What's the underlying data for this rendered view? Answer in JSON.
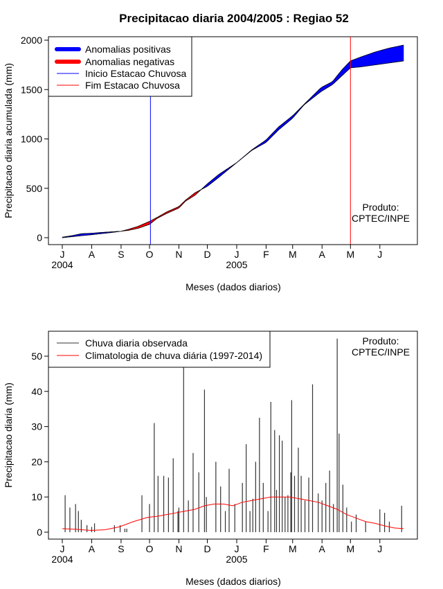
{
  "chart_data": [
    {
      "type": "area",
      "title": "Precipitacao diaria 2004/2005 : Regiao 52",
      "ylabel": "Precipitacao diaria acumulada (mm)",
      "xlabel": "Meses (dados diarios)",
      "ylim": [
        0,
        2000
      ],
      "yticks": [
        0,
        500,
        1000,
        1500,
        2000
      ],
      "month_ticks": [
        "J",
        "A",
        "S",
        "O",
        "N",
        "D",
        "J",
        "F",
        "M",
        "A",
        "M",
        "J"
      ],
      "year_labels": [
        {
          "label": "2004",
          "day": 0
        },
        {
          "label": "2005",
          "day": 184
        }
      ],
      "legend": {
        "position": "top-left",
        "items": [
          {
            "label": "Anomalias positivas",
            "color": "#0000ff"
          },
          {
            "label": "Anomalias negativas",
            "color": "#ff0000"
          },
          {
            "label": "Inicio Estacao Chuvosa",
            "color": "#0000ff"
          },
          {
            "label": "Fim Estacao Chuvosa",
            "color": "#ff0000"
          }
        ]
      },
      "rainy_season_start_day": 93,
      "rainy_season_end_day": 304,
      "product_label": [
        "Produto:",
        "CPTEC/INPE"
      ],
      "days": [
        0,
        10,
        20,
        31,
        40,
        50,
        62,
        70,
        80,
        92,
        100,
        110,
        123,
        130,
        140,
        153,
        165,
        184,
        200,
        215,
        228,
        243,
        255,
        273,
        285,
        295,
        304,
        315,
        330,
        345,
        360
      ],
      "observed_cumulative": [
        5,
        20,
        40,
        45,
        52,
        58,
        65,
        75,
        95,
        135,
        195,
        245,
        300,
        370,
        430,
        545,
        640,
        760,
        890,
        990,
        1120,
        1235,
        1350,
        1520,
        1580,
        1700,
        1790,
        1830,
        1880,
        1920,
        1950
      ],
      "climatology_cumulative": [
        0,
        10,
        20,
        30,
        40,
        50,
        65,
        85,
        115,
        165,
        205,
        260,
        315,
        380,
        455,
        520,
        610,
        760,
        885,
        965,
        1090,
        1210,
        1345,
        1480,
        1550,
        1640,
        1720,
        1730,
        1750,
        1770,
        1790
      ],
      "color_positive": "#0000ff",
      "color_negative": "#ff0000"
    },
    {
      "type": "bar",
      "ylabel": "Precipitacao diaria (mm)",
      "xlabel": "Meses (dados diarios)",
      "ylim": [
        0,
        57
      ],
      "yticks": [
        0,
        10,
        20,
        30,
        40,
        50
      ],
      "month_ticks": [
        "J",
        "A",
        "S",
        "O",
        "N",
        "D",
        "J",
        "F",
        "M",
        "A",
        "M",
        "J"
      ],
      "year_labels": [
        {
          "label": "2004",
          "day": 0
        },
        {
          "label": "2005",
          "day": 184
        }
      ],
      "legend": {
        "position": "top-left",
        "items": [
          {
            "label": "Chuva diaria observada",
            "color": "#000000"
          },
          {
            "label": "Climatologia de chuva diária (1997-2014)",
            "color": "#ff0000"
          }
        ]
      },
      "product_label": [
        "Produto:",
        "CPTEC/INPE"
      ],
      "observed_days": [
        3,
        8,
        14,
        17,
        20,
        26,
        31,
        34,
        55,
        61,
        66,
        68,
        84,
        92,
        97,
        101,
        107,
        112,
        117,
        122,
        123,
        128,
        133,
        138,
        144,
        150,
        152,
        162,
        167,
        172,
        176,
        182,
        190,
        194,
        198,
        201,
        204,
        208,
        212,
        217,
        220,
        224,
        226,
        229,
        232,
        235,
        238,
        241,
        242,
        245,
        249,
        252,
        256,
        260,
        264,
        270,
        274,
        278,
        282,
        286,
        290,
        292,
        296,
        300,
        305,
        310,
        320,
        335,
        340,
        345,
        358
      ],
      "observed_values": [
        10.5,
        7,
        8,
        6,
        3.5,
        2,
        1.5,
        2.5,
        2,
        2,
        1,
        1,
        10.5,
        8,
        31,
        16,
        16,
        15.5,
        21,
        6,
        7,
        57,
        9,
        22.5,
        17,
        40.5,
        10,
        20,
        13,
        6,
        18,
        8,
        14,
        25,
        6,
        9.5,
        20,
        32.5,
        14,
        6,
        37,
        29,
        12,
        27.5,
        26,
        10,
        10.5,
        17,
        37.5,
        16,
        24,
        16,
        9,
        15.5,
        42,
        11,
        9,
        14,
        17.5,
        8,
        55,
        28,
        13.5,
        7,
        3,
        5,
        3,
        6.5,
        5.5,
        3,
        7.5
      ],
      "climatology_days": [
        0,
        15,
        30,
        45,
        60,
        75,
        90,
        100,
        110,
        120,
        130,
        140,
        150,
        160,
        170,
        180,
        190,
        200,
        210,
        220,
        230,
        240,
        250,
        260,
        270,
        280,
        290,
        300,
        310,
        320,
        330,
        340,
        350,
        360
      ],
      "climatology_values": [
        1,
        0.8,
        0.5,
        0.7,
        1.5,
        3,
        4.2,
        4.5,
        5,
        5.5,
        6,
        6.5,
        7.5,
        8,
        8,
        7.5,
        8.5,
        9,
        9.5,
        10,
        10,
        10,
        9.5,
        9,
        8.5,
        7.5,
        6.5,
        5,
        4,
        3,
        2.5,
        1.8,
        1.2,
        1
      ]
    }
  ]
}
